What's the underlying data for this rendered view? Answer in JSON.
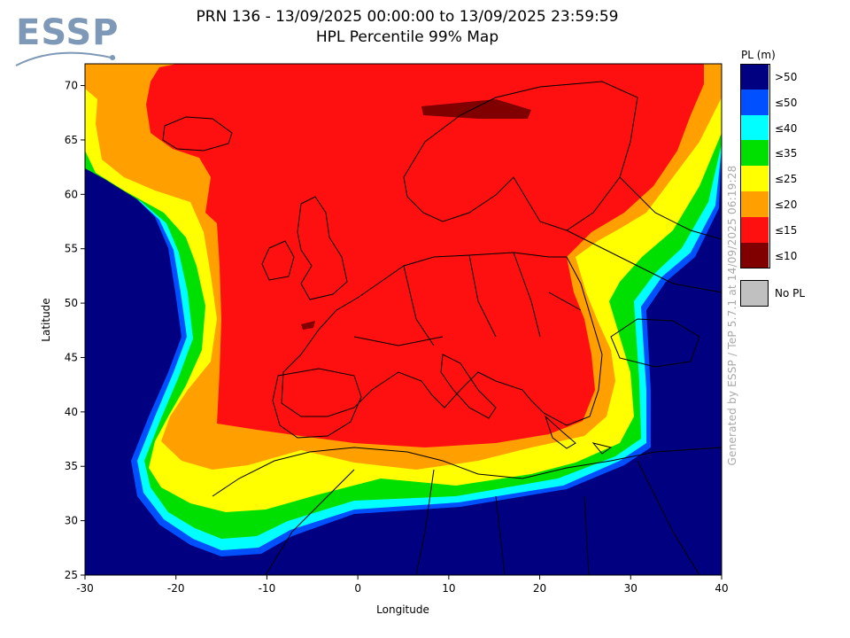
{
  "logo": {
    "text": "ESSP"
  },
  "title": {
    "line1": "PRN 136 - 13/09/2025 00:00:00 to 13/09/2025 23:59:59",
    "line2": "HPL Percentile 99% Map"
  },
  "axes": {
    "xlabel": "Longitude",
    "ylabel": "Latitude",
    "xticks": [
      "-30",
      "-20",
      "-10",
      "0",
      "10",
      "20",
      "30",
      "40"
    ],
    "yticks": [
      "70",
      "65",
      "60",
      "55",
      "50",
      "45",
      "40",
      "35",
      "30",
      "25"
    ],
    "xlim": [
      -30,
      40
    ],
    "ylim": [
      25,
      72
    ]
  },
  "credit": "Generated by ESSP / TeP 5.7.1 at 14/09/2025 06:19:28",
  "legend": {
    "title": "PL (m)",
    "items": [
      {
        "label": ">50",
        "color": "#000080"
      },
      {
        "label": "≤50",
        "color": "#0050ff"
      },
      {
        "label": "≤40",
        "color": "#00ffff"
      },
      {
        "label": "≤35",
        "color": "#00e000"
      },
      {
        "label": "≤25",
        "color": "#ffff00"
      },
      {
        "label": "≤20",
        "color": "#ffa000"
      },
      {
        "label": "≤15",
        "color": "#ff1010"
      },
      {
        "label": "≤10",
        "color": "#800000"
      }
    ],
    "nopl": {
      "label": "No PL",
      "color": "#c0c0c0"
    }
  }
}
